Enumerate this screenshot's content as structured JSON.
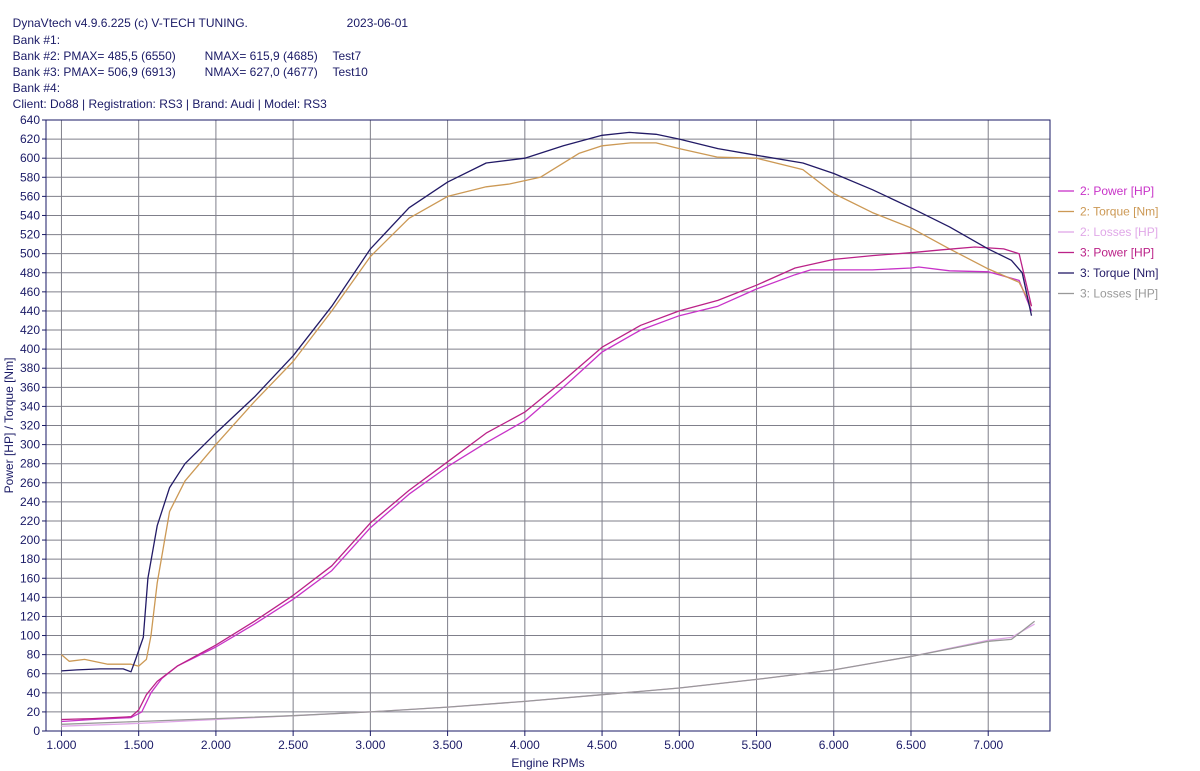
{
  "header": {
    "line1": "DynaVtech v4.9.6.225 (c) V-TECH TUNING.",
    "date": "2023-06-01",
    "bank1": "Bank #1:",
    "bank2_a": "Bank #2: PMAX= 485,5 (6550)",
    "bank2_b": "NMAX= 615,9 (4685)",
    "bank2_c": "Test7",
    "bank3_a": "Bank #3: PMAX= 506,9 (6913)",
    "bank3_b": "NMAX= 627,0 (4677)",
    "bank3_c": "Test10",
    "bank4": "Bank #4:",
    "client": "Client: Do88 | Registration: RS3 | Brand: Audi | Model: RS3"
  },
  "chart_data": {
    "type": "line",
    "xlabel": "Engine RPMs",
    "ylabel": "Power [HP] / Torque [Nm]",
    "xlim": [
      900,
      7400
    ],
    "ylim": [
      0,
      640
    ],
    "grid": true,
    "legend_position": "right",
    "x_ticks": [
      1000,
      1500,
      2000,
      2500,
      3000,
      3500,
      4000,
      4500,
      5000,
      5500,
      6000,
      6500,
      7000
    ],
    "x_tick_labels": [
      "1.000",
      "1.500",
      "2.000",
      "2.500",
      "3.000",
      "3.500",
      "4.000",
      "4.500",
      "5.000",
      "5.500",
      "6.000",
      "6.500",
      "7.000"
    ],
    "y_ticks": [
      0,
      20,
      40,
      60,
      80,
      100,
      120,
      140,
      160,
      180,
      200,
      220,
      240,
      260,
      280,
      300,
      320,
      340,
      360,
      380,
      400,
      420,
      440,
      460,
      480,
      500,
      520,
      540,
      560,
      580,
      600,
      620,
      640
    ],
    "y_tick_labels": [
      "0",
      "20",
      "40",
      "60",
      "80",
      "100",
      "120",
      "140",
      "160",
      "180",
      "200",
      "220",
      "240",
      "260",
      "280",
      "300",
      "320",
      "340",
      "360",
      "380",
      "400",
      "420",
      "440",
      "460",
      "480",
      "500",
      "520",
      "540",
      "560",
      "580",
      "600",
      "620",
      "640"
    ],
    "series": [
      {
        "name": "2: Power [HP]",
        "color": "#c833c8",
        "points": [
          [
            1000,
            10
          ],
          [
            1200,
            12
          ],
          [
            1450,
            14
          ],
          [
            1520,
            20
          ],
          [
            1580,
            40
          ],
          [
            1650,
            55
          ],
          [
            1750,
            68
          ],
          [
            2000,
            88
          ],
          [
            2250,
            112
          ],
          [
            2500,
            138
          ],
          [
            2750,
            168
          ],
          [
            3000,
            213
          ],
          [
            3250,
            248
          ],
          [
            3500,
            277
          ],
          [
            3750,
            302
          ],
          [
            4000,
            325
          ],
          [
            4250,
            360
          ],
          [
            4500,
            397
          ],
          [
            4750,
            420
          ],
          [
            5000,
            435
          ],
          [
            5250,
            445
          ],
          [
            5500,
            463
          ],
          [
            5750,
            478
          ],
          [
            5850,
            483
          ],
          [
            6000,
            483
          ],
          [
            6250,
            483
          ],
          [
            6500,
            485
          ],
          [
            6550,
            486
          ],
          [
            6750,
            482
          ],
          [
            7000,
            481
          ],
          [
            7200,
            472
          ],
          [
            7280,
            440
          ]
        ]
      },
      {
        "name": "2: Torque [Nm]",
        "color": "#cc9955",
        "points": [
          [
            1000,
            80
          ],
          [
            1050,
            73
          ],
          [
            1150,
            75
          ],
          [
            1300,
            70
          ],
          [
            1450,
            70
          ],
          [
            1500,
            68
          ],
          [
            1550,
            75
          ],
          [
            1580,
            100
          ],
          [
            1620,
            155
          ],
          [
            1700,
            230
          ],
          [
            1800,
            262
          ],
          [
            2000,
            300
          ],
          [
            2250,
            345
          ],
          [
            2500,
            387
          ],
          [
            2750,
            440
          ],
          [
            3000,
            497
          ],
          [
            3250,
            537
          ],
          [
            3500,
            560
          ],
          [
            3750,
            570
          ],
          [
            3900,
            573
          ],
          [
            4100,
            580
          ],
          [
            4350,
            605
          ],
          [
            4500,
            613
          ],
          [
            4685,
            616
          ],
          [
            4850,
            616
          ],
          [
            5000,
            610
          ],
          [
            5250,
            601
          ],
          [
            5500,
            600
          ],
          [
            5800,
            588
          ],
          [
            6000,
            563
          ],
          [
            6250,
            543
          ],
          [
            6500,
            527
          ],
          [
            6750,
            505
          ],
          [
            7000,
            484
          ],
          [
            7200,
            470
          ],
          [
            7280,
            445
          ]
        ]
      },
      {
        "name": "2: Losses [HP]",
        "color": "#e0a8e8",
        "points": [
          [
            1000,
            5
          ],
          [
            1500,
            8
          ],
          [
            2000,
            12
          ],
          [
            2500,
            16
          ],
          [
            3000,
            20
          ],
          [
            3500,
            25
          ],
          [
            4000,
            31
          ],
          [
            4500,
            38
          ],
          [
            5000,
            45
          ],
          [
            5500,
            54
          ],
          [
            6000,
            64
          ],
          [
            6500,
            78
          ],
          [
            7000,
            95
          ],
          [
            7150,
            98
          ],
          [
            7300,
            112
          ]
        ]
      },
      {
        "name": "3: Power [HP]",
        "color": "#bb2288",
        "points": [
          [
            1000,
            12
          ],
          [
            1200,
            13
          ],
          [
            1450,
            15
          ],
          [
            1500,
            22
          ],
          [
            1550,
            38
          ],
          [
            1620,
            52
          ],
          [
            1750,
            68
          ],
          [
            2000,
            90
          ],
          [
            2250,
            115
          ],
          [
            2500,
            142
          ],
          [
            2750,
            173
          ],
          [
            3000,
            218
          ],
          [
            3250,
            252
          ],
          [
            3500,
            282
          ],
          [
            3750,
            312
          ],
          [
            4000,
            334
          ],
          [
            4250,
            367
          ],
          [
            4500,
            402
          ],
          [
            4750,
            425
          ],
          [
            5000,
            440
          ],
          [
            5250,
            451
          ],
          [
            5500,
            467
          ],
          [
            5750,
            485
          ],
          [
            6000,
            494
          ],
          [
            6250,
            498
          ],
          [
            6500,
            501
          ],
          [
            6700,
            504
          ],
          [
            6913,
            507
          ],
          [
            7100,
            505
          ],
          [
            7200,
            500
          ],
          [
            7280,
            445
          ]
        ]
      },
      {
        "name": "3: Torque [Nm]",
        "color": "#221a66",
        "points": [
          [
            1000,
            63
          ],
          [
            1100,
            64
          ],
          [
            1250,
            65
          ],
          [
            1400,
            65
          ],
          [
            1450,
            62
          ],
          [
            1480,
            75
          ],
          [
            1530,
            98
          ],
          [
            1560,
            160
          ],
          [
            1620,
            215
          ],
          [
            1700,
            255
          ],
          [
            1800,
            280
          ],
          [
            2000,
            312
          ],
          [
            2250,
            350
          ],
          [
            2500,
            393
          ],
          [
            2750,
            445
          ],
          [
            3000,
            505
          ],
          [
            3250,
            548
          ],
          [
            3500,
            575
          ],
          [
            3750,
            595
          ],
          [
            4000,
            600
          ],
          [
            4250,
            613
          ],
          [
            4500,
            624
          ],
          [
            4677,
            627
          ],
          [
            4850,
            625
          ],
          [
            5000,
            620
          ],
          [
            5250,
            610
          ],
          [
            5500,
            603
          ],
          [
            5800,
            595
          ],
          [
            6000,
            584
          ],
          [
            6250,
            567
          ],
          [
            6500,
            548
          ],
          [
            6750,
            528
          ],
          [
            7000,
            505
          ],
          [
            7150,
            493
          ],
          [
            7220,
            480
          ],
          [
            7280,
            435
          ]
        ]
      },
      {
        "name": "3: Losses [HP]",
        "color": "#999999",
        "points": [
          [
            1000,
            7
          ],
          [
            1500,
            10
          ],
          [
            2000,
            13
          ],
          [
            2500,
            16
          ],
          [
            3000,
            20
          ],
          [
            3500,
            25
          ],
          [
            4000,
            31
          ],
          [
            4500,
            38
          ],
          [
            5000,
            45
          ],
          [
            5500,
            54
          ],
          [
            6000,
            64
          ],
          [
            6500,
            78
          ],
          [
            7000,
            94
          ],
          [
            7150,
            96
          ],
          [
            7300,
            115
          ]
        ]
      }
    ]
  }
}
